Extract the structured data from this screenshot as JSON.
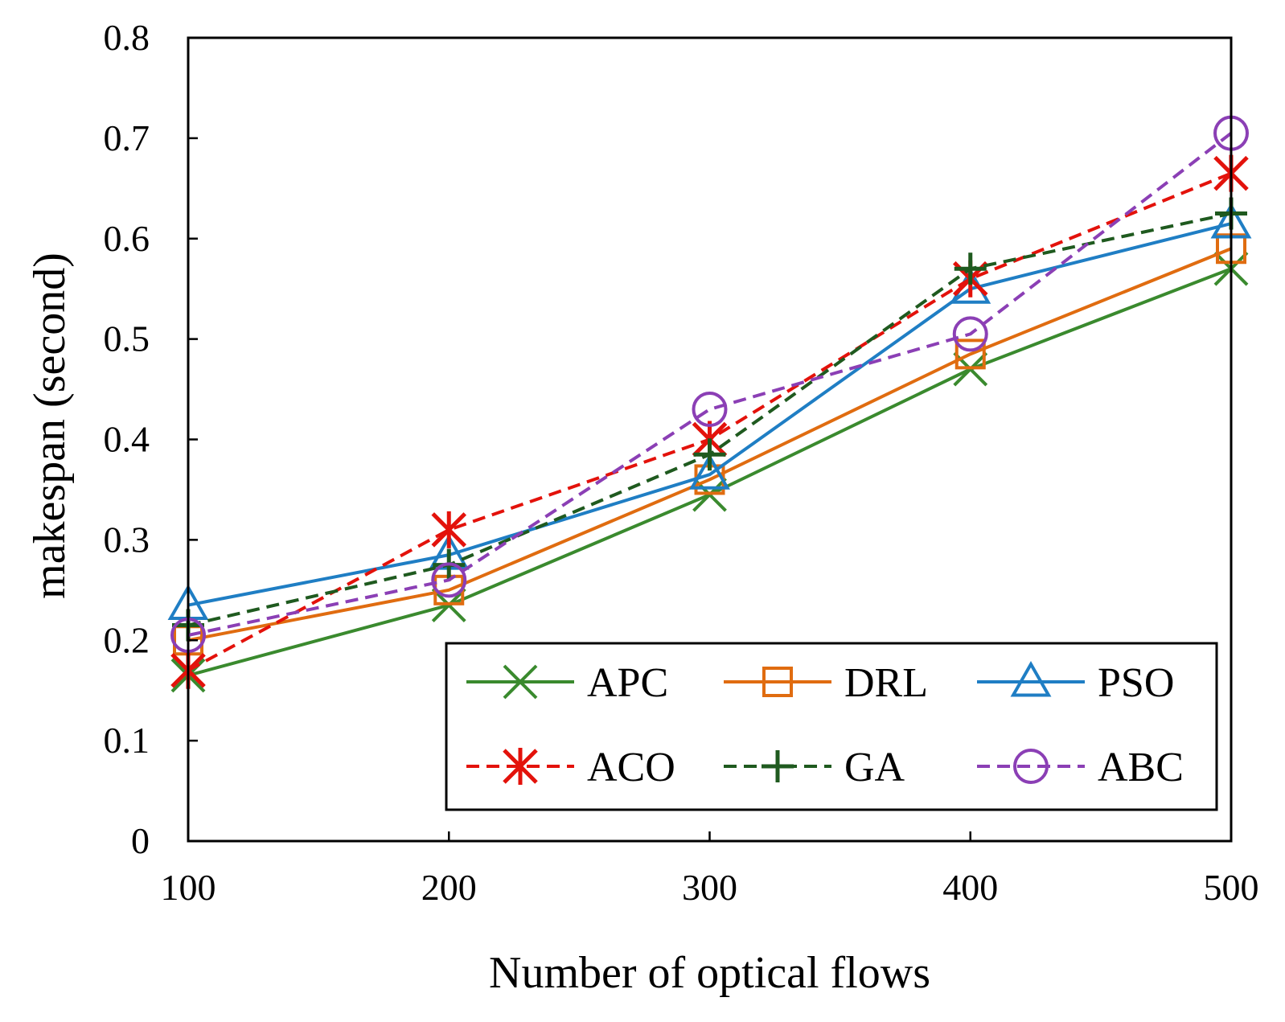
{
  "chart_data": {
    "type": "line",
    "title": "",
    "xlabel": "Number of optical flows",
    "ylabel": "makespan (second)",
    "x": [
      100,
      200,
      300,
      400,
      500
    ],
    "x_tick_labels": [
      "100",
      "200",
      "300",
      "400",
      "500"
    ],
    "ylim": [
      0,
      0.8
    ],
    "y_ticks": [
      0,
      0.1,
      0.2,
      0.3,
      0.4,
      0.5,
      0.6,
      0.7,
      0.8
    ],
    "y_tick_labels": [
      "0",
      "0.1",
      "0.2",
      "0.3",
      "0.4",
      "0.5",
      "0.6",
      "0.7",
      "0.8"
    ],
    "grid": false,
    "legend_position": "bottom-right",
    "series": [
      {
        "name": "APC",
        "color": "#3a8a2e",
        "dash": "solid",
        "marker": "x",
        "values": [
          0.165,
          0.235,
          0.345,
          0.47,
          0.57
        ]
      },
      {
        "name": "DRL",
        "color": "#e06c10",
        "dash": "solid",
        "marker": "square",
        "values": [
          0.2,
          0.25,
          0.36,
          0.485,
          0.59
        ]
      },
      {
        "name": "PSO",
        "color": "#1f7ec4",
        "dash": "solid",
        "marker": "triangle",
        "values": [
          0.235,
          0.285,
          0.365,
          0.55,
          0.615
        ]
      },
      {
        "name": "ACO",
        "color": "#e3120b",
        "dash": "dashed",
        "marker": "asterisk",
        "values": [
          0.17,
          0.31,
          0.4,
          0.56,
          0.665
        ]
      },
      {
        "name": "GA",
        "color": "#1f5a1f",
        "dash": "dashed",
        "marker": "plus",
        "values": [
          0.215,
          0.275,
          0.385,
          0.57,
          0.625
        ]
      },
      {
        "name": "ABC",
        "color": "#8b3fb5",
        "dash": "dashed",
        "marker": "circle",
        "values": [
          0.205,
          0.26,
          0.43,
          0.505,
          0.705
        ]
      }
    ]
  }
}
